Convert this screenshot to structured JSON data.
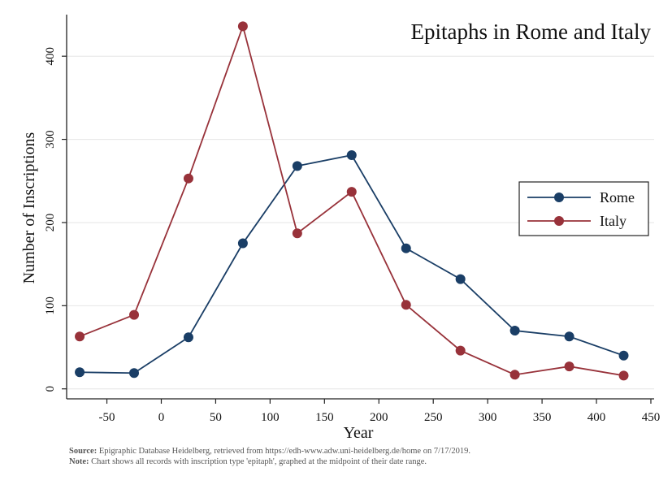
{
  "chart_data": {
    "type": "line",
    "title": "Epitaphs in Rome and Italy",
    "xlabel": "Year",
    "ylabel": "Number of Inscriptions",
    "xlim": [
      -87,
      453
    ],
    "ylim": [
      -12,
      450
    ],
    "xticks": [
      -50,
      0,
      50,
      100,
      150,
      200,
      250,
      300,
      350,
      400,
      450
    ],
    "yticks": [
      0,
      100,
      200,
      300,
      400
    ],
    "grid": true,
    "legend_position": "right",
    "x": [
      -75,
      -25,
      25,
      75,
      125,
      175,
      225,
      275,
      325,
      375,
      425
    ],
    "series": [
      {
        "name": "Rome",
        "color": "#1a3e66",
        "values": [
          20,
          19,
          62,
          175,
          268,
          281,
          169,
          132,
          70,
          63,
          40
        ]
      },
      {
        "name": "Italy",
        "color": "#98323a",
        "values": [
          63,
          89,
          253,
          436,
          187,
          237,
          101,
          46,
          17,
          27,
          16
        ]
      }
    ]
  },
  "footnotes": {
    "source_label": "Source:",
    "source_text": " Epigraphic Database Heidelberg, retrieved from https://edh-www.adw.uni-heidelberg.de/home on 7/17/2019.",
    "note_label": "Note:",
    "note_text": " Chart shows all records with inscription type 'epitaph', graphed at the midpoint of their date range."
  }
}
